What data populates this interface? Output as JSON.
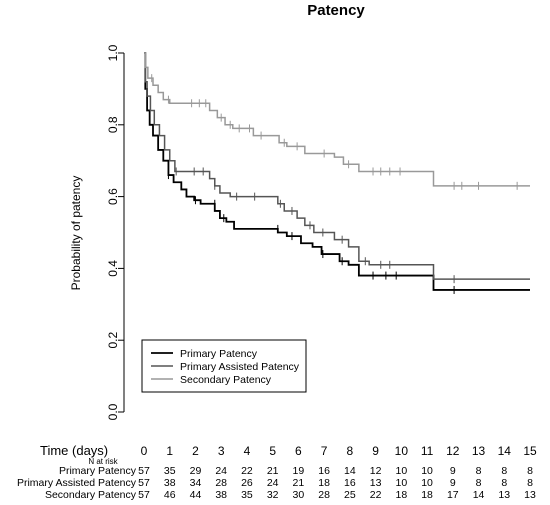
{
  "chart_data": {
    "type": "line",
    "title": "Patency",
    "ylabel": "Probability of patency",
    "xlabel": "Time (days)",
    "xlim": [
      0,
      15
    ],
    "ylim": [
      0,
      1
    ],
    "x_ticks": [
      "0",
      "1",
      "2",
      "3",
      "4",
      "5",
      "6",
      "7",
      "8",
      "9",
      "10",
      "11",
      "12",
      "13",
      "14",
      "15"
    ],
    "y_ticks": [
      "0.0",
      "0.2",
      "0.4",
      "0.6",
      "0.8",
      "1.0"
    ],
    "legend": {
      "placement": "bottom-left"
    },
    "series": [
      {
        "name": "Primary Patency",
        "color": "#000000",
        "steps": [
          [
            0,
            1.0
          ],
          [
            0.05,
            0.9
          ],
          [
            0.12,
            0.84
          ],
          [
            0.22,
            0.8
          ],
          [
            0.35,
            0.77
          ],
          [
            0.55,
            0.73
          ],
          [
            0.75,
            0.7
          ],
          [
            0.95,
            0.66
          ],
          [
            1.15,
            0.64
          ],
          [
            1.45,
            0.62
          ],
          [
            1.65,
            0.6
          ],
          [
            1.95,
            0.59
          ],
          [
            2.2,
            0.58
          ],
          [
            2.75,
            0.56
          ],
          [
            2.95,
            0.54
          ],
          [
            3.2,
            0.53
          ],
          [
            3.5,
            0.51
          ],
          [
            5.2,
            0.5
          ],
          [
            5.55,
            0.49
          ],
          [
            6.1,
            0.47
          ],
          [
            6.55,
            0.46
          ],
          [
            6.9,
            0.44
          ],
          [
            7.6,
            0.42
          ],
          [
            7.95,
            0.41
          ],
          [
            8.35,
            0.38
          ],
          [
            11.25,
            0.34
          ],
          [
            15,
            0.34
          ]
        ],
        "censor_marks": [
          [
            0.95,
            0.66
          ],
          [
            2.0,
            0.59
          ],
          [
            2.75,
            0.58
          ],
          [
            3.1,
            0.54
          ],
          [
            5.2,
            0.51
          ],
          [
            5.75,
            0.49
          ],
          [
            6.95,
            0.44
          ],
          [
            7.7,
            0.42
          ],
          [
            8.9,
            0.38
          ],
          [
            9.4,
            0.38
          ],
          [
            9.8,
            0.38
          ],
          [
            12.05,
            0.34
          ]
        ]
      },
      {
        "name": "Primary Assisted Patency",
        "color": "#555555",
        "steps": [
          [
            0,
            1.0
          ],
          [
            0.05,
            0.92
          ],
          [
            0.12,
            0.88
          ],
          [
            0.25,
            0.84
          ],
          [
            0.4,
            0.8
          ],
          [
            0.6,
            0.77
          ],
          [
            0.8,
            0.73
          ],
          [
            1.0,
            0.7
          ],
          [
            1.2,
            0.67
          ],
          [
            2.55,
            0.65
          ],
          [
            2.75,
            0.63
          ],
          [
            2.95,
            0.61
          ],
          [
            3.35,
            0.6
          ],
          [
            5.2,
            0.58
          ],
          [
            5.45,
            0.56
          ],
          [
            5.95,
            0.54
          ],
          [
            6.25,
            0.52
          ],
          [
            6.6,
            0.5
          ],
          [
            7.4,
            0.48
          ],
          [
            7.95,
            0.46
          ],
          [
            8.35,
            0.42
          ],
          [
            8.75,
            0.41
          ],
          [
            11.25,
            0.37
          ],
          [
            15,
            0.37
          ]
        ],
        "censor_marks": [
          [
            1.25,
            0.67
          ],
          [
            1.95,
            0.67
          ],
          [
            2.3,
            0.67
          ],
          [
            2.75,
            0.63
          ],
          [
            3.6,
            0.6
          ],
          [
            4.3,
            0.6
          ],
          [
            5.3,
            0.58
          ],
          [
            5.75,
            0.56
          ],
          [
            6.45,
            0.52
          ],
          [
            6.95,
            0.5
          ],
          [
            7.7,
            0.48
          ],
          [
            8.6,
            0.42
          ],
          [
            9.2,
            0.41
          ],
          [
            9.55,
            0.41
          ],
          [
            12.05,
            0.37
          ]
        ]
      },
      {
        "name": "Secondary Patency",
        "color": "#999999",
        "steps": [
          [
            0,
            1.0
          ],
          [
            0.05,
            0.96
          ],
          [
            0.15,
            0.93
          ],
          [
            0.35,
            0.91
          ],
          [
            0.55,
            0.89
          ],
          [
            0.75,
            0.87
          ],
          [
            1.0,
            0.86
          ],
          [
            2.55,
            0.84
          ],
          [
            2.85,
            0.82
          ],
          [
            3.15,
            0.8
          ],
          [
            3.45,
            0.79
          ],
          [
            4.25,
            0.77
          ],
          [
            5.25,
            0.75
          ],
          [
            5.55,
            0.74
          ],
          [
            6.25,
            0.72
          ],
          [
            7.4,
            0.71
          ],
          [
            7.75,
            0.69
          ],
          [
            8.35,
            0.67
          ],
          [
            11.25,
            0.63
          ],
          [
            15,
            0.63
          ]
        ],
        "censor_marks": [
          [
            0.3,
            0.93
          ],
          [
            0.95,
            0.87
          ],
          [
            1.85,
            0.86
          ],
          [
            2.15,
            0.86
          ],
          [
            2.4,
            0.86
          ],
          [
            3.0,
            0.82
          ],
          [
            3.35,
            0.8
          ],
          [
            3.7,
            0.79
          ],
          [
            4.1,
            0.79
          ],
          [
            4.55,
            0.77
          ],
          [
            5.45,
            0.75
          ],
          [
            5.95,
            0.74
          ],
          [
            7.0,
            0.72
          ],
          [
            7.95,
            0.69
          ],
          [
            8.9,
            0.67
          ],
          [
            9.2,
            0.67
          ],
          [
            9.55,
            0.67
          ],
          [
            9.95,
            0.67
          ],
          [
            12.05,
            0.63
          ],
          [
            12.35,
            0.63
          ],
          [
            13.0,
            0.63
          ],
          [
            14.5,
            0.63
          ]
        ]
      }
    ],
    "risk_table": {
      "title": "N at risk",
      "rows": [
        {
          "label": "Primary Patency",
          "values": [
            "57",
            "35",
            "29",
            "24",
            "22",
            "21",
            "19",
            "16",
            "14",
            "12",
            "10",
            "10",
            "9",
            "8",
            "8",
            "8"
          ]
        },
        {
          "label": "Primary Assisted Patency",
          "values": [
            "57",
            "38",
            "34",
            "28",
            "26",
            "24",
            "21",
            "18",
            "16",
            "13",
            "10",
            "10",
            "9",
            "8",
            "8",
            "8"
          ]
        },
        {
          "label": "Secondary Patency",
          "values": [
            "57",
            "46",
            "44",
            "38",
            "35",
            "32",
            "30",
            "28",
            "25",
            "22",
            "18",
            "18",
            "17",
            "14",
            "13",
            "13"
          ]
        }
      ]
    }
  }
}
